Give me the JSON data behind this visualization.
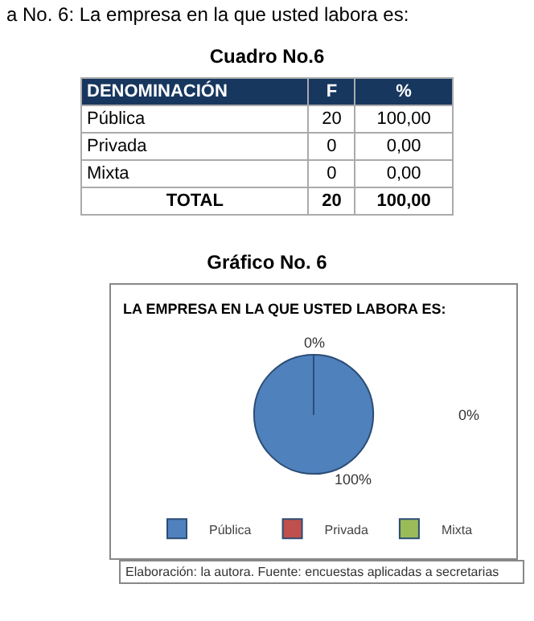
{
  "chart_data": [
    {
      "type": "other",
      "subtitle": "a No. 6: La empresa en la que usted labora es:",
      "title": "Cuadro No.6",
      "xlabel": "DENOMINACIÓN",
      "categories": [
        "Pública",
        "Privada",
        "Mixta"
      ],
      "series": [
        {
          "name": "F",
          "values": [
            20,
            0,
            0
          ],
          "value_labels": [
            "20",
            "0",
            "0"
          ]
        },
        {
          "name": "%",
          "values": [
            100,
            0,
            0
          ],
          "value_labels": [
            "100,00",
            "0,00",
            "0,00"
          ]
        }
      ],
      "totals": [
        "TOTAL",
        "20",
        "100,00"
      ]
    },
    {
      "type": "pie",
      "title": "LA EMPRESA EN LA QUE USTED LABORA ES:",
      "categories": [
        "Pública",
        "Privada",
        "Mixta"
      ],
      "values": [
        100,
        0,
        0
      ],
      "colors": [
        "#4f81bd",
        "#c0504d",
        "#9bbb59"
      ],
      "value_labels": [
        "100%",
        "0%",
        "0%"
      ],
      "legend": "bottom",
      "annotations": [
        "Gráfico No. 6",
        "Elaboración: la autora. Fuente: encuestas aplicadas a secretarias"
      ]
    }
  ]
}
